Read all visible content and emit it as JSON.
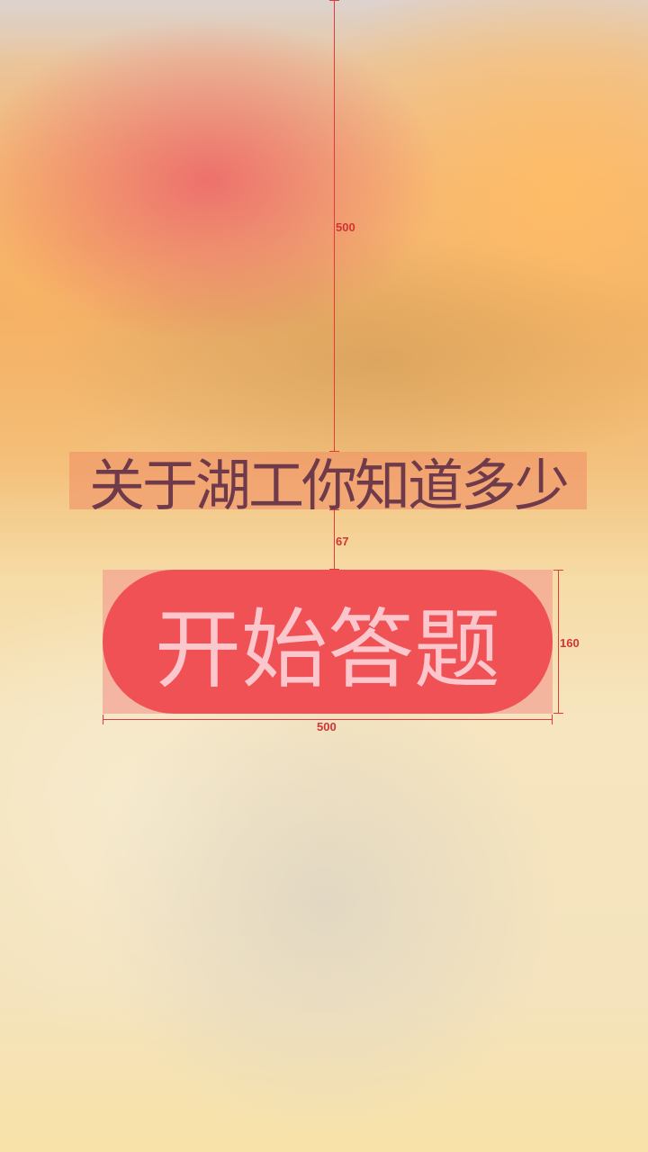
{
  "title": "关于湖工你知道多少",
  "start_button": {
    "label": "开始答题"
  },
  "measurements": {
    "top_gap": "500",
    "title_gap": "67",
    "button_height": "160",
    "button_width": "500"
  },
  "colors": {
    "button": "#ef5155",
    "button_text": "#fbc7cc",
    "title_text": "#6f3a4a",
    "guide": "#e23b3b"
  }
}
